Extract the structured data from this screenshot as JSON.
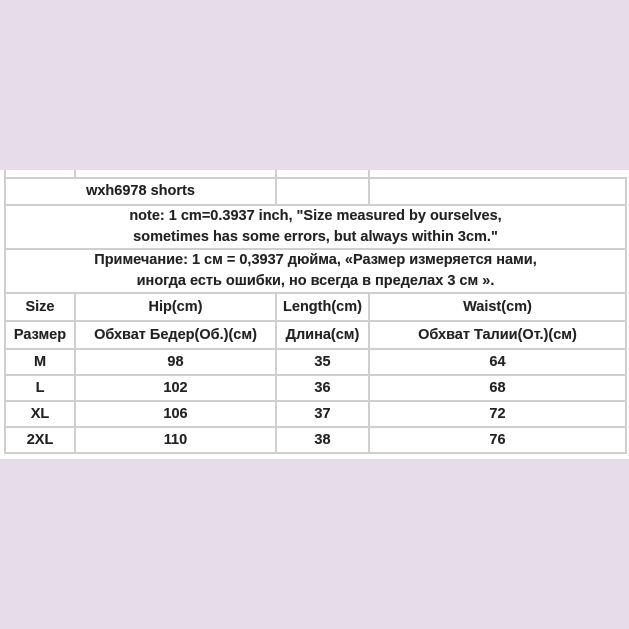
{
  "background_color": "#e6dcea",
  "title": "wxh6978 shorts",
  "note_en": [
    "note: 1 cm=0.3937 inch, \"Size measured by ourselves,",
    "sometimes has some errors, but always within 3cm.\""
  ],
  "note_ru": [
    "Примечание: 1 см = 0,3937 дюйма, «Размер измеряется нами,",
    "иногда есть ошибки, но всегда в пределах 3 см »."
  ],
  "headers_en": [
    "Size",
    "Hip(cm)",
    "Length(cm)",
    "Waist(cm)"
  ],
  "headers_ru": [
    "Размер",
    "Обхват Бедер(Об.)(см)",
    "Длина(см)",
    "Обхват Талии(От.)(см)"
  ],
  "rows": [
    [
      "M",
      "98",
      "35",
      "64"
    ],
    [
      "L",
      "102",
      "36",
      "68"
    ],
    [
      "XL",
      "106",
      "37",
      "72"
    ],
    [
      "2XL",
      "110",
      "38",
      "76"
    ]
  ]
}
